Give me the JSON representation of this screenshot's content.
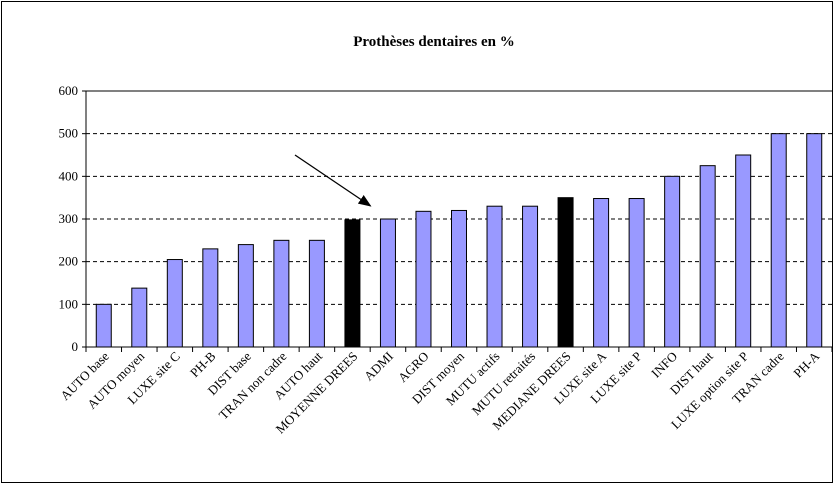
{
  "chart_data": {
    "type": "bar",
    "title": "Prothèses dentaires en %",
    "xlabel": "",
    "ylabel": "",
    "ylim": [
      0,
      600
    ],
    "yticks": [
      0,
      100,
      200,
      300,
      400,
      500,
      600
    ],
    "grid": "horizontal-dashed",
    "legend": "none",
    "categories": [
      "AUTO base",
      "AUTO moyen",
      "LUXE site C",
      "PH-B",
      "DIST base",
      "TRAN non cadre",
      "AUTO haut",
      "MOYENNE DREES",
      "ADMI",
      "AGRO",
      "DIST moyen",
      "MUTU actifs",
      "MUTU retraités",
      "MEDIANE DREES",
      "LUXE site A",
      "LUXE site P",
      "INFO",
      "DIST haut",
      "LUXE option site P",
      "TRAN cadre",
      "PH-A"
    ],
    "values": [
      100,
      138,
      205,
      230,
      240,
      250,
      250,
      298,
      300,
      318,
      320,
      330,
      330,
      350,
      348,
      348,
      400,
      425,
      450,
      500,
      500
    ],
    "highlighted": [
      "MOYENNE DREES",
      "MEDIANE DREES"
    ],
    "annotation": {
      "type": "arrow",
      "points_to": "MOYENNE DREES"
    },
    "colors": {
      "bar": "#9999ff",
      "highlight": "#000000",
      "outline": "#000000",
      "grid": "#000000"
    }
  }
}
